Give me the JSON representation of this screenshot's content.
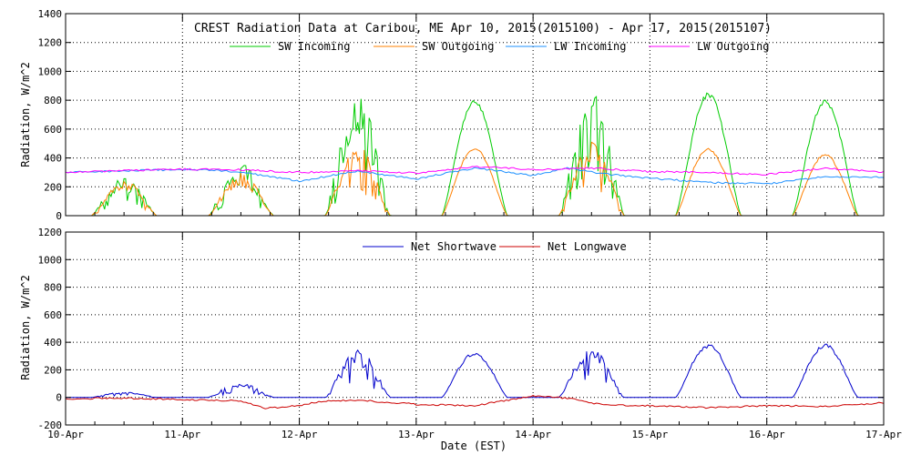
{
  "chart_data": [
    {
      "type": "line",
      "title": "CREST Radiation Data at Caribou, ME   Apr 10, 2015(2015100) - Apr 17, 2015(2015107)",
      "ylabel": "Radiation, W/m^2",
      "xlabel": "",
      "ylim": [
        0,
        1400
      ],
      "yticks": [
        0,
        200,
        400,
        600,
        800,
        1000,
        1200,
        1400
      ],
      "xlim": [
        0,
        7
      ],
      "xtick_labels": [
        "10-Apr",
        "11-Apr",
        "12-Apr",
        "13-Apr",
        "14-Apr",
        "15-Apr",
        "16-Apr",
        "17-Apr"
      ],
      "grid": true,
      "legend": "top",
      "series": [
        {
          "name": "SW Incoming",
          "color": "#00cc00",
          "day_peaks": [
            270,
            370,
            880,
            800,
            870,
            860,
            810
          ],
          "day_noise": [
            0.4,
            0.45,
            0.45,
            0.03,
            0.35,
            0.05,
            0.05
          ]
        },
        {
          "name": "SW Outgoing",
          "color": "#ff8000",
          "day_peaks": [
            250,
            300,
            490,
            470,
            510,
            470,
            430
          ],
          "day_noise": [
            0.3,
            0.35,
            0.3,
            0.03,
            0.3,
            0.05,
            0.05
          ]
        },
        {
          "name": "LW Incoming",
          "color": "#1e90ff",
          "x": [
            0,
            0.5,
            1,
            1.3,
            1.6,
            2,
            2.5,
            3,
            3.5,
            4,
            4.3,
            4.6,
            5,
            5.5,
            6,
            6.5,
            7
          ],
          "values": [
            300,
            310,
            320,
            315,
            290,
            240,
            310,
            255,
            330,
            280,
            330,
            290,
            260,
            230,
            220,
            270,
            265
          ]
        },
        {
          "name": "LW Outgoing",
          "color": "#ff00ff",
          "x": [
            0,
            0.5,
            1,
            1.5,
            2,
            2.5,
            3,
            3.5,
            4,
            4.5,
            5,
            5.5,
            6,
            6.5,
            7
          ],
          "values": [
            300,
            312,
            322,
            318,
            300,
            312,
            295,
            340,
            320,
            330,
            305,
            300,
            285,
            330,
            300
          ]
        }
      ]
    },
    {
      "type": "line",
      "title": "",
      "ylabel": "Radiation, W/m^2",
      "xlabel": "Date (EST)",
      "ylim": [
        -200,
        1200
      ],
      "yticks": [
        -200,
        0,
        200,
        400,
        600,
        800,
        1000,
        1200
      ],
      "xlim": [
        0,
        7
      ],
      "xtick_labels": [
        "10-Apr",
        "11-Apr",
        "12-Apr",
        "13-Apr",
        "14-Apr",
        "15-Apr",
        "16-Apr",
        "17-Apr"
      ],
      "grid": true,
      "legend": "top",
      "series": [
        {
          "name": "Net Shortwave",
          "color": "#0000cc",
          "day_peaks": [
            40,
            110,
            350,
            330,
            360,
            390,
            390
          ],
          "day_noise": [
            0.3,
            0.45,
            0.4,
            0.08,
            0.25,
            0.08,
            0.08
          ]
        },
        {
          "name": "Net Longwave",
          "color": "#cc0000",
          "x": [
            0,
            0.5,
            1,
            1.5,
            1.7,
            2,
            2.2,
            2.5,
            3,
            3.5,
            4,
            4.3,
            4.6,
            5,
            5.5,
            6,
            6.5,
            7
          ],
          "values": [
            -10,
            -5,
            -15,
            -25,
            -80,
            -60,
            -25,
            -20,
            -50,
            -60,
            10,
            -5,
            -55,
            -60,
            -75,
            -60,
            -65,
            -40
          ]
        }
      ]
    }
  ]
}
